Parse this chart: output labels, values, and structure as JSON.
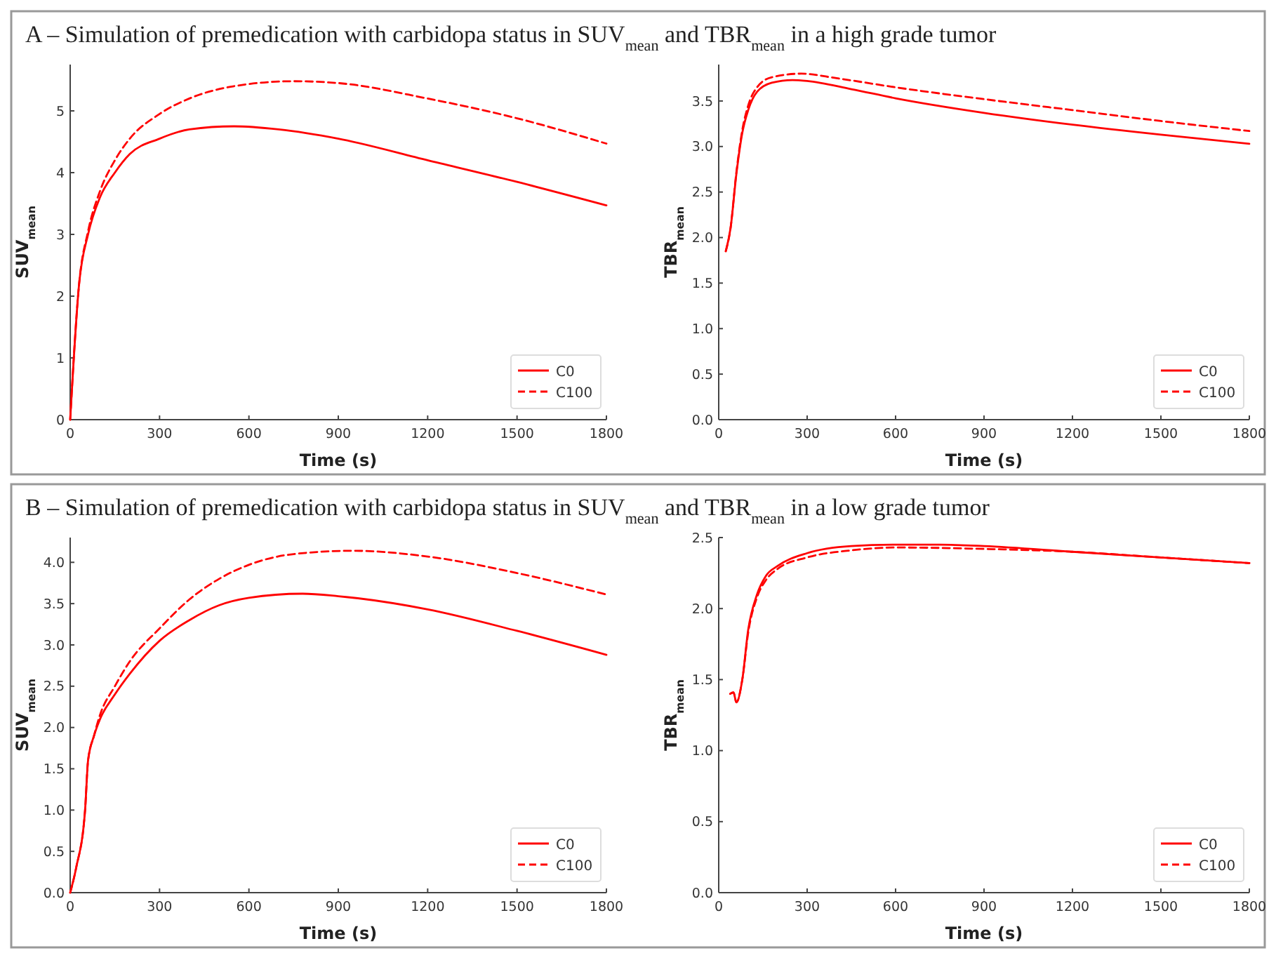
{
  "chart_data": [
    {
      "type": "line",
      "title": "A – Simulation of premedication with carbidopa status in SUV$_{mean}$ and TBR$_{mean}$ in a high grade tumor",
      "xlabel": "Time (s)",
      "ylabel": "SUV$_{mean}$",
      "xlim": [
        0,
        1800
      ],
      "xticks": [
        0,
        300,
        600,
        900,
        1200,
        1500,
        1800
      ],
      "ylim": [
        0,
        5.75
      ],
      "yticks": [
        0,
        1,
        2,
        3,
        4,
        5
      ],
      "legend": "bottom right",
      "series": [
        {
          "name": "C0",
          "color": "#ff0000",
          "line_style": "solid",
          "x": [
            0,
            30,
            60,
            100,
            150,
            200,
            300,
            400,
            550,
            700,
            900,
            1200,
            1500,
            1800
          ],
          "values": [
            0,
            2.2,
            3.0,
            3.6,
            4.0,
            4.3,
            4.55,
            4.7,
            4.75,
            4.7,
            4.55,
            4.2,
            3.85,
            3.47
          ]
        },
        {
          "name": "C100",
          "color": "#ff0000",
          "line_style": "dashed",
          "x": [
            0,
            30,
            60,
            100,
            150,
            200,
            300,
            400,
            550,
            750,
            900,
            1200,
            1500,
            1800
          ],
          "values": [
            0,
            2.2,
            3.05,
            3.7,
            4.2,
            4.55,
            4.95,
            5.2,
            5.4,
            5.48,
            5.45,
            5.2,
            4.88,
            4.47
          ]
        }
      ]
    },
    {
      "type": "line",
      "xlabel": "Time (s)",
      "ylabel": "TBR$_{mean}$",
      "xlim": [
        0,
        1800
      ],
      "xticks": [
        0,
        300,
        600,
        900,
        1200,
        1500,
        1800
      ],
      "ylim": [
        0,
        3.9
      ],
      "yticks": [
        {
          "value": 0,
          "label": "0.0"
        },
        {
          "value": 0.5,
          "label": "0.5"
        },
        {
          "value": 1,
          "label": "1.0"
        },
        {
          "value": 1.5,
          "label": "1.5"
        },
        {
          "value": 2,
          "label": "2.0"
        },
        {
          "value": 2.5,
          "label": "2.5"
        },
        {
          "value": 3,
          "label": "3.0"
        },
        {
          "value": 3.5,
          "label": "3.5"
        }
      ],
      "legend": "bottom right",
      "series": [
        {
          "name": "C0",
          "color": "#ff0000",
          "line_style": "solid",
          "x": [
            24,
            40,
            60,
            80,
            100,
            130,
            180,
            250,
            300,
            450,
            600,
            900,
            1200,
            1500,
            1800
          ],
          "values": [
            1.85,
            2.1,
            2.7,
            3.15,
            3.4,
            3.6,
            3.7,
            3.73,
            3.72,
            3.63,
            3.53,
            3.37,
            3.24,
            3.13,
            3.03
          ]
        },
        {
          "name": "C100",
          "color": "#ff0000",
          "line_style": "dashed",
          "x": [
            24,
            40,
            60,
            80,
            100,
            130,
            180,
            280,
            400,
            600,
            900,
            1200,
            1500,
            1800
          ],
          "values": [
            1.85,
            2.1,
            2.72,
            3.18,
            3.45,
            3.65,
            3.76,
            3.8,
            3.75,
            3.65,
            3.52,
            3.4,
            3.28,
            3.17
          ]
        }
      ]
    },
    {
      "type": "line",
      "title": "B – Simulation of premedication with carbidopa status in SUV$_{mean}$ and TBR$_{mean}$ in a low grade tumor",
      "xlabel": "Time (s)",
      "ylabel": "SUV$_{mean}$",
      "xlim": [
        0,
        1800
      ],
      "xticks": [
        0,
        300,
        600,
        900,
        1200,
        1500,
        1800
      ],
      "ylim": [
        0,
        4.3
      ],
      "yticks": [
        {
          "value": 0,
          "label": "0.0"
        },
        {
          "value": 0.5,
          "label": "0.5"
        },
        {
          "value": 1,
          "label": "1.0"
        },
        {
          "value": 1.5,
          "label": "1.5"
        },
        {
          "value": 2,
          "label": "2.0"
        },
        {
          "value": 2.5,
          "label": "2.5"
        },
        {
          "value": 3,
          "label": "3.0"
        },
        {
          "value": 3.5,
          "label": "3.5"
        },
        {
          "value": 4,
          "label": "4.0"
        }
      ],
      "legend": "bottom right",
      "series": [
        {
          "name": "C0",
          "color": "#ff0000",
          "line_style": "solid",
          "x": [
            0,
            20,
            50,
            60,
            80,
            100,
            150,
            200,
            300,
            400,
            500,
            600,
            780,
            900,
            1200,
            1500,
            1800
          ],
          "values": [
            0,
            0.3,
            1.0,
            1.6,
            1.9,
            2.1,
            2.4,
            2.65,
            3.05,
            3.3,
            3.48,
            3.57,
            3.62,
            3.59,
            3.43,
            3.17,
            2.88
          ]
        },
        {
          "name": "C100",
          "color": "#ff0000",
          "line_style": "dashed",
          "x": [
            0,
            20,
            50,
            60,
            80,
            100,
            150,
            200,
            300,
            400,
            500,
            600,
            750,
            950,
            1200,
            1500,
            1800
          ],
          "values": [
            0,
            0.3,
            1.0,
            1.6,
            1.9,
            2.15,
            2.5,
            2.8,
            3.2,
            3.55,
            3.8,
            3.97,
            4.1,
            4.14,
            4.07,
            3.87,
            3.61
          ]
        }
      ]
    },
    {
      "type": "line",
      "xlabel": "Time (s)",
      "ylabel": "TBR$_{mean}$",
      "xlim": [
        0,
        1800
      ],
      "xticks": [
        0,
        300,
        600,
        900,
        1200,
        1500,
        1800
      ],
      "ylim": [
        0,
        2.5
      ],
      "yticks": [
        {
          "value": 0,
          "label": "0.0"
        },
        {
          "value": 0.5,
          "label": "0.5"
        },
        {
          "value": 1,
          "label": "1.0"
        },
        {
          "value": 1.5,
          "label": "1.5"
        },
        {
          "value": 2,
          "label": "2.0"
        },
        {
          "value": 2.5,
          "label": "2.5"
        }
      ],
      "legend": "bottom right",
      "series": [
        {
          "name": "C0",
          "color": "#ff0000",
          "line_style": "solid",
          "x": [
            39,
            50,
            60,
            80,
            100,
            130,
            160,
            200,
            300,
            450,
            600,
            750,
            900,
            1200,
            1500,
            1800
          ],
          "values": [
            1.4,
            1.41,
            1.34,
            1.5,
            1.85,
            2.1,
            2.23,
            2.3,
            2.39,
            2.44,
            2.45,
            2.45,
            2.44,
            2.4,
            2.36,
            2.32
          ]
        },
        {
          "name": "C100",
          "color": "#ff0000",
          "line_style": "dashed",
          "x": [
            39,
            50,
            60,
            80,
            100,
            130,
            160,
            200,
            300,
            450,
            600,
            900,
            1200,
            1500,
            1800
          ],
          "values": [
            1.4,
            1.41,
            1.34,
            1.5,
            1.83,
            2.08,
            2.2,
            2.28,
            2.36,
            2.41,
            2.43,
            2.42,
            2.4,
            2.36,
            2.32
          ]
        }
      ]
    }
  ]
}
